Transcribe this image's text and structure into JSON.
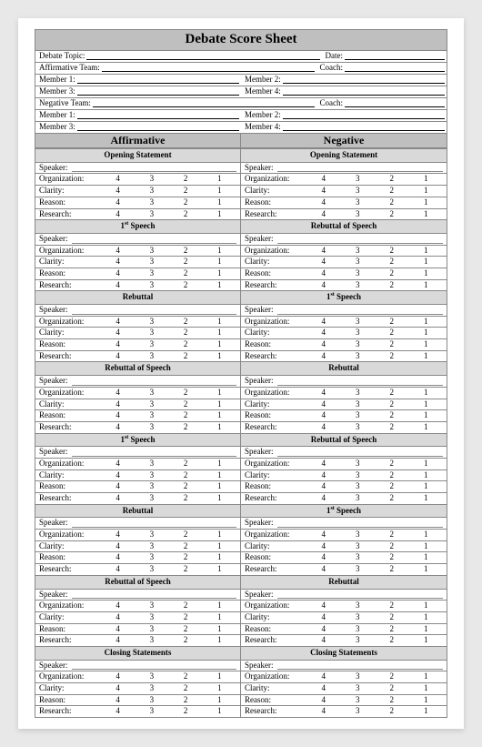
{
  "title": "Debate Score Sheet",
  "header": {
    "topic_lbl": "Debate Topic:",
    "date_lbl": "Date:",
    "aff_team_lbl": "Affirmative Team:",
    "neg_team_lbl": "Negative Team:",
    "coach_lbl": "Coach:",
    "m1_lbl": "Member 1:",
    "m2_lbl": "Member 2:",
    "m3_lbl": "Member 3:",
    "m4_lbl": "Member 4:"
  },
  "columns": {
    "left": "Affirmative",
    "right": "Negative"
  },
  "speaker_lbl": "Speaker:",
  "criteria": [
    "Organization:",
    "Clarity:",
    "Reason:",
    "Research:"
  ],
  "scores": [
    "4",
    "3",
    "2",
    "1"
  ],
  "sections_left": [
    "Opening Statement",
    "1<sup class=\"sup\">st</sup> Speech",
    "Rebuttal",
    "Rebuttal of Speech",
    "1<sup class=\"sup\">st</sup> Speech",
    "Rebuttal",
    "Rebuttal of Speech",
    "Closing Statements"
  ],
  "sections_right": [
    "Opening Statement",
    "Rebuttal of Speech",
    "1<sup class=\"sup\">st</sup> Speech",
    "Rebuttal",
    "Rebuttal of Speech",
    "1<sup class=\"sup\">st</sup> Speech",
    "Rebuttal",
    "Closing Statements"
  ],
  "style": {
    "title_bg": "#bfbfbf",
    "section_bg": "#d9d9d9",
    "border": "#888888",
    "page_bg": "#ffffff"
  }
}
